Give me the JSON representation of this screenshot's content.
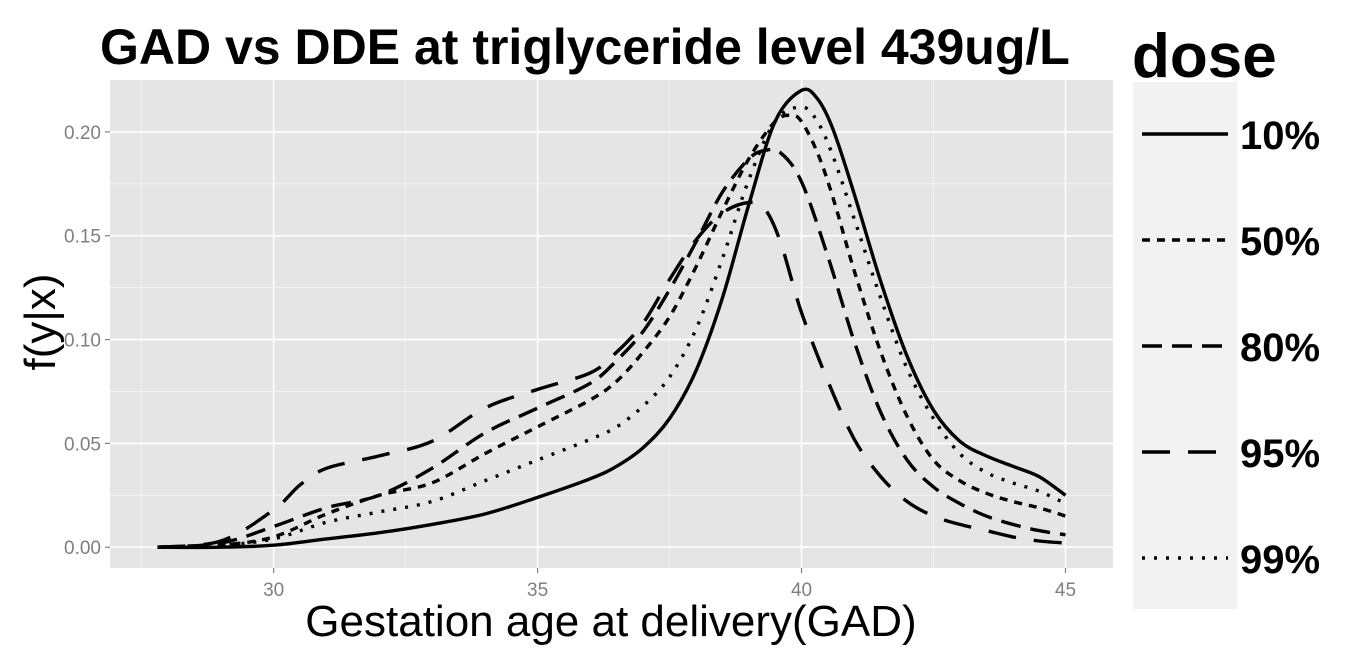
{
  "chart_data": {
    "type": "line",
    "title": "GAD vs DDE at triglyceride level 439ug/L",
    "xlabel": "Gestation age at delivery(GAD)",
    "ylabel": "f(y|x)",
    "xlim": [
      26.9,
      45.9
    ],
    "ylim": [
      -0.01,
      0.225
    ],
    "x_ticks": [
      "30",
      "35",
      "40",
      "45"
    ],
    "x_tick_values": [
      30,
      35,
      40,
      45
    ],
    "y_ticks": [
      "0.00",
      "0.05",
      "0.10",
      "0.15",
      "0.20"
    ],
    "y_tick_values": [
      0,
      0.05,
      0.1,
      0.15,
      0.2
    ],
    "grid": true,
    "panel_background": "#e5e5e5",
    "grid_color": "#ffffff",
    "legend": {
      "title": "dose",
      "position": "right",
      "background": "#f2f2f2"
    },
    "series": [
      {
        "name": "10%",
        "dash": "solid",
        "x": [
          27.8,
          29,
          30,
          31,
          32,
          33,
          34,
          35,
          36,
          36.5,
          37,
          37.5,
          38,
          38.5,
          39,
          39.5,
          40,
          40.3,
          40.6,
          41,
          41.5,
          42,
          42.5,
          43,
          43.5,
          44,
          44.5,
          45
        ],
        "y": [
          0,
          0,
          0.001,
          0.004,
          0.007,
          0.011,
          0.016,
          0.024,
          0.033,
          0.039,
          0.048,
          0.062,
          0.085,
          0.12,
          0.165,
          0.205,
          0.22,
          0.216,
          0.201,
          0.17,
          0.128,
          0.092,
          0.066,
          0.051,
          0.044,
          0.039,
          0.034,
          0.025
        ]
      },
      {
        "name": "50%",
        "dash": "8,7",
        "x": [
          27.8,
          29,
          30,
          31,
          32,
          33,
          34,
          35,
          36,
          36.5,
          37,
          37.5,
          38,
          38.5,
          39,
          39.5,
          39.8,
          40,
          40.3,
          40.6,
          41,
          41.5,
          42,
          42.5,
          43,
          43.5,
          44,
          44.5,
          45
        ],
        "y": [
          0,
          0.001,
          0.005,
          0.016,
          0.025,
          0.031,
          0.045,
          0.058,
          0.071,
          0.08,
          0.094,
          0.111,
          0.135,
          0.162,
          0.187,
          0.205,
          0.208,
          0.205,
          0.19,
          0.168,
          0.133,
          0.094,
          0.063,
          0.042,
          0.032,
          0.026,
          0.022,
          0.019,
          0.015
        ]
      },
      {
        "name": "80%",
        "dash": "20,10",
        "x": [
          27.8,
          29,
          30,
          31,
          32,
          33,
          34,
          35,
          36,
          36.5,
          37,
          37.5,
          38,
          38.5,
          39,
          39.3,
          39.6,
          40,
          40.5,
          41,
          41.5,
          42,
          42.5,
          43,
          43.5,
          44,
          44.5,
          45
        ],
        "y": [
          0,
          0.002,
          0.01,
          0.019,
          0.025,
          0.038,
          0.055,
          0.067,
          0.079,
          0.09,
          0.104,
          0.124,
          0.147,
          0.171,
          0.187,
          0.191,
          0.19,
          0.176,
          0.14,
          0.099,
          0.065,
          0.042,
          0.029,
          0.021,
          0.015,
          0.011,
          0.008,
          0.006
        ]
      },
      {
        "name": "95%",
        "dash": "28,18",
        "x": [
          27.8,
          29,
          30,
          30.5,
          31,
          32,
          33,
          34,
          35,
          36,
          36.5,
          37,
          37.5,
          38,
          38.5,
          39,
          39.3,
          39.6,
          40,
          40.5,
          41,
          41.5,
          42,
          42.5,
          43,
          43.5,
          44,
          44.5,
          45
        ],
        "y": [
          0,
          0.003,
          0.018,
          0.03,
          0.038,
          0.044,
          0.051,
          0.067,
          0.076,
          0.084,
          0.094,
          0.108,
          0.129,
          0.148,
          0.161,
          0.166,
          0.163,
          0.147,
          0.113,
          0.08,
          0.052,
          0.034,
          0.022,
          0.015,
          0.011,
          0.008,
          0.005,
          0.003,
          0.002
        ]
      },
      {
        "name": "99%",
        "dash": "3,9",
        "x": [
          27.8,
          29,
          30,
          31,
          32,
          33,
          34,
          35,
          36,
          36.5,
          37,
          37.5,
          38,
          38.5,
          39,
          39.5,
          40,
          40.3,
          40.6,
          41,
          41.5,
          42,
          42.5,
          43,
          43.5,
          44,
          44.5,
          45
        ],
        "y": [
          0,
          0.001,
          0.004,
          0.012,
          0.017,
          0.022,
          0.032,
          0.042,
          0.052,
          0.058,
          0.068,
          0.082,
          0.105,
          0.139,
          0.177,
          0.205,
          0.212,
          0.205,
          0.188,
          0.158,
          0.12,
          0.086,
          0.062,
          0.045,
          0.036,
          0.031,
          0.027,
          0.021
        ]
      }
    ]
  }
}
